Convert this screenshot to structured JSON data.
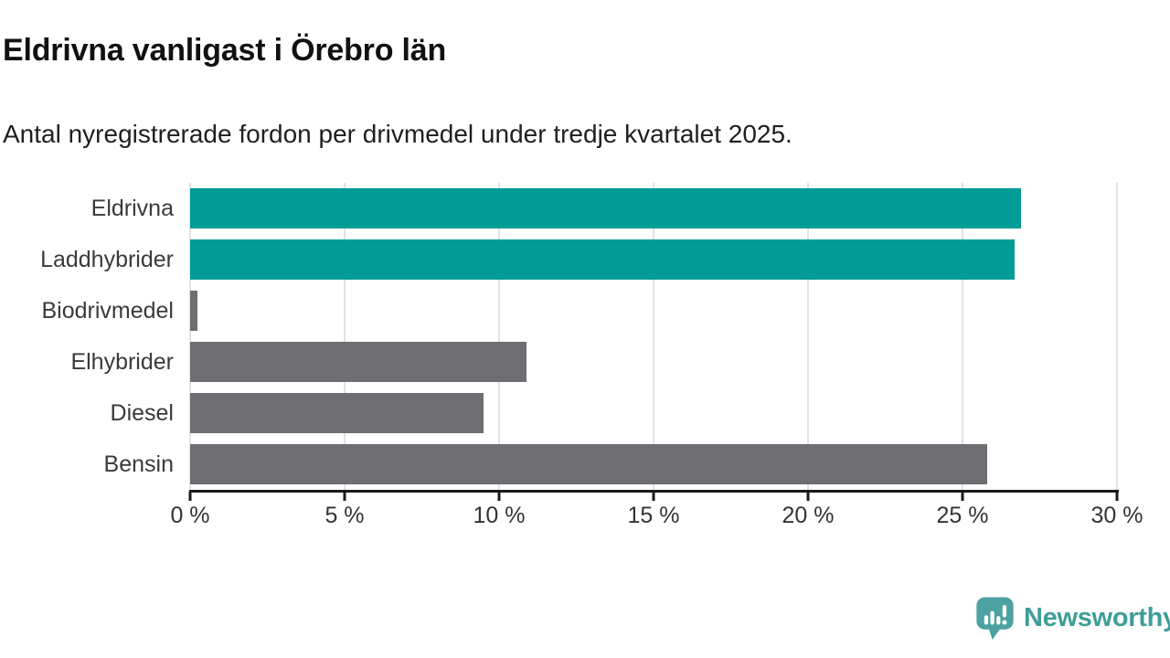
{
  "header": {
    "title": "Eldrivna vanligast i Örebro län",
    "subtitle": "Antal nyregistrerade fordon per drivmedel under tredje kvartalet 2025."
  },
  "chart_data": {
    "type": "bar",
    "orientation": "horizontal",
    "title": "Eldrivna vanligast i Örebro län",
    "subtitle": "Antal nyregistrerade fordon per drivmedel under tredje kvartalet 2025.",
    "categories": [
      "Eldrivna",
      "Laddhybrider",
      "Biodrivmedel",
      "Elhybrider",
      "Diesel",
      "Bensin"
    ],
    "values": [
      26.9,
      26.7,
      0.25,
      10.9,
      9.5,
      25.8
    ],
    "unit": "%",
    "colors": [
      "#009C95",
      "#009C95",
      "#6D6D72",
      "#6D6D72",
      "#6D6D72",
      "#6D6D72"
    ],
    "highlight_color": "#009C95",
    "default_color": "#6D6D72",
    "xlim": [
      0,
      30
    ],
    "x_ticks": [
      0,
      5,
      10,
      15,
      20,
      25,
      30
    ],
    "x_tick_labels": [
      "0 %",
      "5 %",
      "10 %",
      "15 %",
      "20 %",
      "25 %",
      "30 %"
    ],
    "grid": "vertical",
    "grid_color": "#e2e2e2",
    "axis_color": "#1a1a1a",
    "legend": "none"
  },
  "footer": {
    "brand": "Newsworthy",
    "brand_color": "#3F9D99",
    "logo_icon": "newsworthy-speech-bubble-bar-chart-icon",
    "logo_color": "#4CA2A0"
  }
}
